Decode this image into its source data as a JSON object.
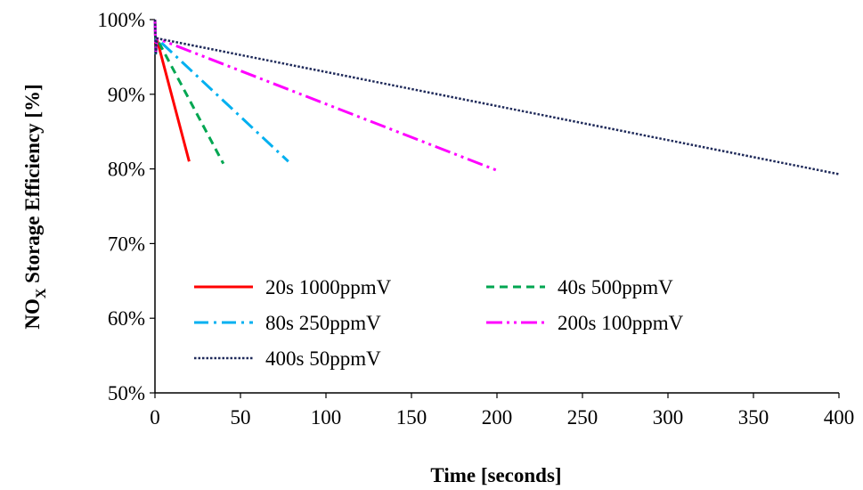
{
  "chart_data": {
    "type": "line",
    "xlabel": "Time [seconds]",
    "ylabel_main": "NO",
    "ylabel_sub": "X",
    "ylabel_rest": " Storage Efficiency [%]",
    "xlim": [
      0,
      400
    ],
    "ylim": [
      50,
      100
    ],
    "xticks": [
      0,
      50,
      100,
      150,
      200,
      250,
      300,
      350,
      400
    ],
    "yticks": [
      50,
      60,
      70,
      80,
      90,
      100
    ],
    "ytick_labels": [
      "50%",
      "60%",
      "70%",
      "80%",
      "90%",
      "100%"
    ],
    "grid": false,
    "legend_position": "lower-left",
    "series": [
      {
        "name": "20s 1000ppmV",
        "color": "#ff0000",
        "dash": "solid",
        "x": [
          0,
          0.5,
          1,
          20
        ],
        "y": [
          100,
          95.5,
          97.5,
          81
        ]
      },
      {
        "name": "40s 500ppmV",
        "color": "#00a651",
        "dash": "dash",
        "x": [
          0,
          0.5,
          1,
          40
        ],
        "y": [
          100,
          95.5,
          97.5,
          80.7
        ]
      },
      {
        "name": "80s 250ppmV",
        "color": "#00b0f0",
        "dash": "dashdot",
        "x": [
          0,
          0.5,
          1,
          78
        ],
        "y": [
          100,
          95.5,
          97.5,
          81
        ]
      },
      {
        "name": "200s 100ppmV",
        "color": "#ff00ff",
        "dash": "dashdotdot",
        "x": [
          0,
          0.5,
          1,
          200
        ],
        "y": [
          100,
          95.5,
          97.5,
          79.8
        ]
      },
      {
        "name": "400s 50ppmV",
        "color": "#1f2a5a",
        "dash": "dot",
        "x": [
          0,
          0.5,
          1,
          400
        ],
        "y": [
          100,
          95.5,
          97.5,
          79.3
        ]
      }
    ]
  }
}
